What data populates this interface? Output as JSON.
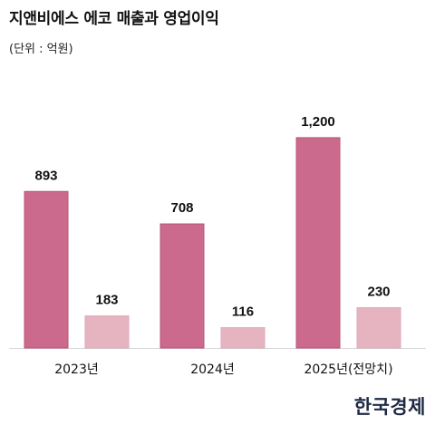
{
  "chart_data": {
    "type": "bar",
    "title": "지앤비에스 에코 매출과 영업이익",
    "subtitle": "(단위 : 억원)",
    "categories": [
      "2023년",
      "2024년",
      "2025년(전망치)"
    ],
    "series": [
      {
        "values": [
          893,
          708,
          1200
        ],
        "color": "#cb6a8c",
        "stroke": "#b9547a"
      },
      {
        "values": [
          183,
          116,
          230
        ],
        "color": "#e6b4c0",
        "stroke": "#ddaab7"
      }
    ],
    "ylim": [
      0,
      1370
    ],
    "grid": false,
    "legend": "none"
  },
  "source_logo": "한국경제"
}
